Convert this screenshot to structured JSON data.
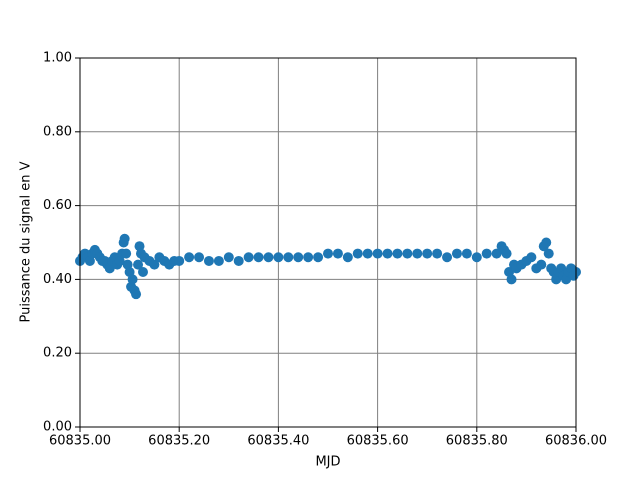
{
  "chart_data": {
    "type": "scatter",
    "x_label": "MJD",
    "y_label": "Puissance du signal en V",
    "color": "#1f77b4",
    "grid": true,
    "xlim": [
      60835.0,
      60836.0
    ],
    "xticks": [
      {
        "value": 60835.0,
        "label": "60835.00"
      },
      {
        "value": 60835.2,
        "label": "60835.20"
      },
      {
        "value": 60835.4,
        "label": "60835.40"
      },
      {
        "value": 60835.6,
        "label": "60835.60"
      },
      {
        "value": 60835.8,
        "label": "60835.80"
      },
      {
        "value": 60836.0,
        "label": "60836.00"
      }
    ],
    "ylim": [
      0,
      1
    ],
    "yticks": [
      {
        "value": 0,
        "label": "0.00"
      },
      {
        "value": 0.2,
        "label": "0.20"
      },
      {
        "value": 0.4,
        "label": "0.40"
      },
      {
        "value": 0.6,
        "label": "0.60"
      },
      {
        "value": 0.8,
        "label": "0.80"
      },
      {
        "value": 1,
        "label": "1.00"
      }
    ],
    "x": [
      60835.0,
      60835.005,
      60835.01,
      60835.015,
      60835.02,
      60835.025,
      60835.03,
      60835.035,
      60835.04,
      60835.045,
      60835.05,
      60835.055,
      60835.06,
      60835.065,
      60835.07,
      60835.075,
      60835.08,
      60835.085,
      60835.088,
      60835.09,
      60835.093,
      60835.096,
      60835.1,
      60835.103,
      60835.106,
      60835.11,
      60835.113,
      60835.117,
      60835.12,
      60835.123,
      60835.127,
      60835.13,
      60835.14,
      60835.15,
      60835.16,
      60835.17,
      60835.18,
      60835.19,
      60835.2,
      60835.22,
      60835.24,
      60835.26,
      60835.28,
      60835.3,
      60835.32,
      60835.34,
      60835.36,
      60835.38,
      60835.4,
      60835.42,
      60835.44,
      60835.46,
      60835.48,
      60835.5,
      60835.52,
      60835.54,
      60835.56,
      60835.58,
      60835.6,
      60835.62,
      60835.64,
      60835.66,
      60835.68,
      60835.7,
      60835.72,
      60835.74,
      60835.76,
      60835.78,
      60835.8,
      60835.82,
      60835.84,
      60835.85,
      60835.855,
      60835.86,
      60835.865,
      60835.87,
      60835.875,
      60835.88,
      60835.89,
      60835.9,
      60835.91,
      60835.92,
      60835.93,
      60835.935,
      60835.94,
      60835.945,
      60835.95,
      60835.955,
      60835.96,
      60835.965,
      60835.97,
      60835.975,
      60835.98,
      60835.985,
      60835.99,
      60835.995,
      60836.0
    ],
    "values": [
      0.45,
      0.46,
      0.47,
      0.46,
      0.45,
      0.47,
      0.48,
      0.47,
      0.46,
      0.45,
      0.45,
      0.44,
      0.43,
      0.45,
      0.46,
      0.44,
      0.45,
      0.47,
      0.5,
      0.51,
      0.47,
      0.44,
      0.42,
      0.38,
      0.4,
      0.37,
      0.36,
      0.44,
      0.49,
      0.47,
      0.42,
      0.46,
      0.45,
      0.44,
      0.46,
      0.45,
      0.44,
      0.45,
      0.45,
      0.46,
      0.46,
      0.45,
      0.45,
      0.46,
      0.45,
      0.46,
      0.46,
      0.46,
      0.46,
      0.46,
      0.46,
      0.46,
      0.46,
      0.47,
      0.47,
      0.46,
      0.47,
      0.47,
      0.47,
      0.47,
      0.47,
      0.47,
      0.47,
      0.47,
      0.47,
      0.46,
      0.47,
      0.47,
      0.46,
      0.47,
      0.47,
      0.49,
      0.48,
      0.47,
      0.42,
      0.4,
      0.44,
      0.43,
      0.44,
      0.45,
      0.46,
      0.43,
      0.44,
      0.49,
      0.5,
      0.47,
      0.43,
      0.42,
      0.4,
      0.42,
      0.43,
      0.41,
      0.4,
      0.42,
      0.43,
      0.41,
      0.42
    ]
  }
}
